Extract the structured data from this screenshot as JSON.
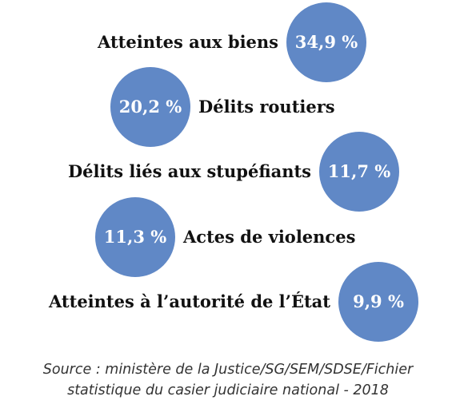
{
  "chart_data": {
    "type": "bubble-list",
    "unit": "%",
    "items": [
      {
        "label": "Atteintes aux biens",
        "value": 34.9,
        "display": "34,9 %"
      },
      {
        "label": "Délits routiers",
        "value": 20.2,
        "display": "20,2 %"
      },
      {
        "label": "Délits liés aux stupéfiants",
        "value": 11.7,
        "display": "11,7 %"
      },
      {
        "label": "Actes de violences",
        "value": 11.3,
        "display": "11,3 %"
      },
      {
        "label": "Atteintes à l’autorité de l’État",
        "value": 9.9,
        "display": "9,9 %"
      }
    ]
  },
  "source": {
    "line1": "Source : ministère de la Justice/SG/SEM/SDSE/Fichier",
    "line2": "statistique du casier judiciaire national - 2018"
  },
  "colors": {
    "accent": "#6088c6",
    "label": "#111111",
    "value_text": "#ffffff"
  }
}
